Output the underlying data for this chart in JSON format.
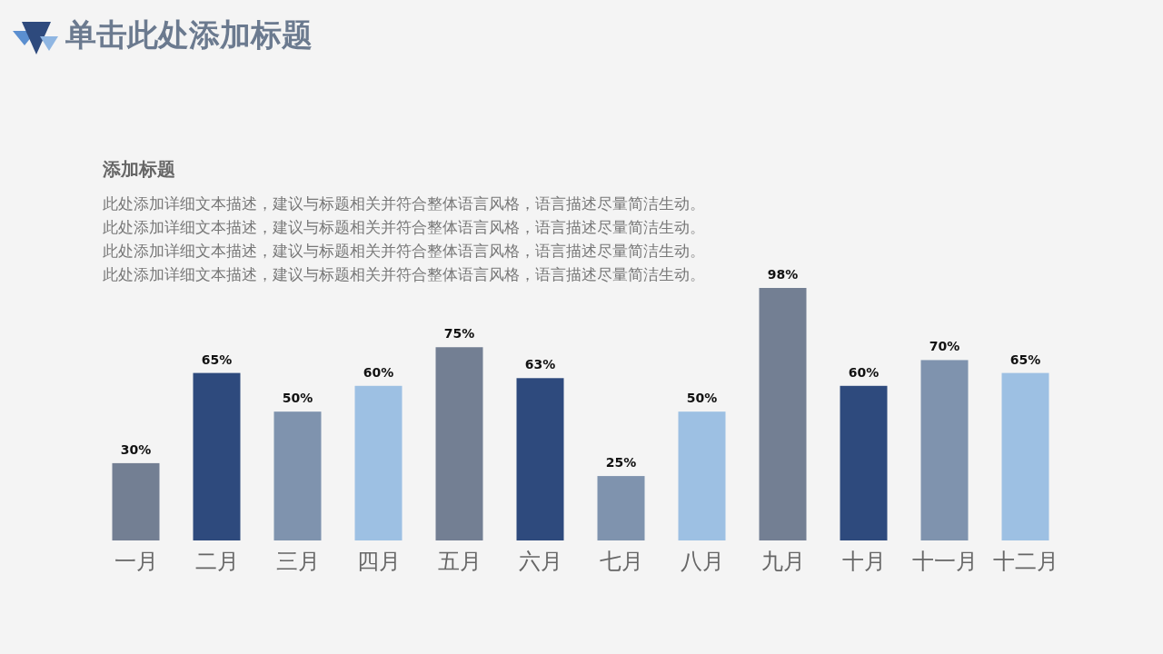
{
  "chart_data": {
    "type": "bar",
    "title": "单击此处添加标题",
    "subtitle": "添加标题",
    "annotations": [
      "此处添加详细文本描述，建议与标题相关并符合整体语言风格，语言描述尽量简洁生动。",
      "此处添加详细文本描述，建议与标题相关并符合整体语言风格，语言描述尽量简洁生动。",
      "此处添加详细文本描述，建议与标题相关并符合整体语言风格，语言描述尽量简洁生动。",
      "此处添加详细文本描述，建议与标题相关并符合整体语言风格，语言描述尽量简洁生动。"
    ],
    "categories": [
      "一月",
      "二月",
      "三月",
      "四月",
      "五月",
      "六月",
      "七月",
      "八月",
      "九月",
      "十月",
      "十一月",
      "十二月"
    ],
    "values": [
      30,
      65,
      50,
      60,
      75,
      63,
      25,
      50,
      98,
      60,
      70,
      65
    ],
    "value_labels": [
      "30%",
      "65%",
      "50%",
      "60%",
      "75%",
      "63%",
      "25%",
      "50%",
      "98%",
      "60%",
      "70%",
      "65%"
    ],
    "colors": [
      "#737f93",
      "#2e4a7d",
      "#7f93ae",
      "#9dc0e3",
      "#737f93",
      "#2e4a7d",
      "#7f93ae",
      "#9dc0e3",
      "#737f93",
      "#2e4a7d",
      "#7f93ae",
      "#9dc0e3"
    ],
    "relative": false
  }
}
